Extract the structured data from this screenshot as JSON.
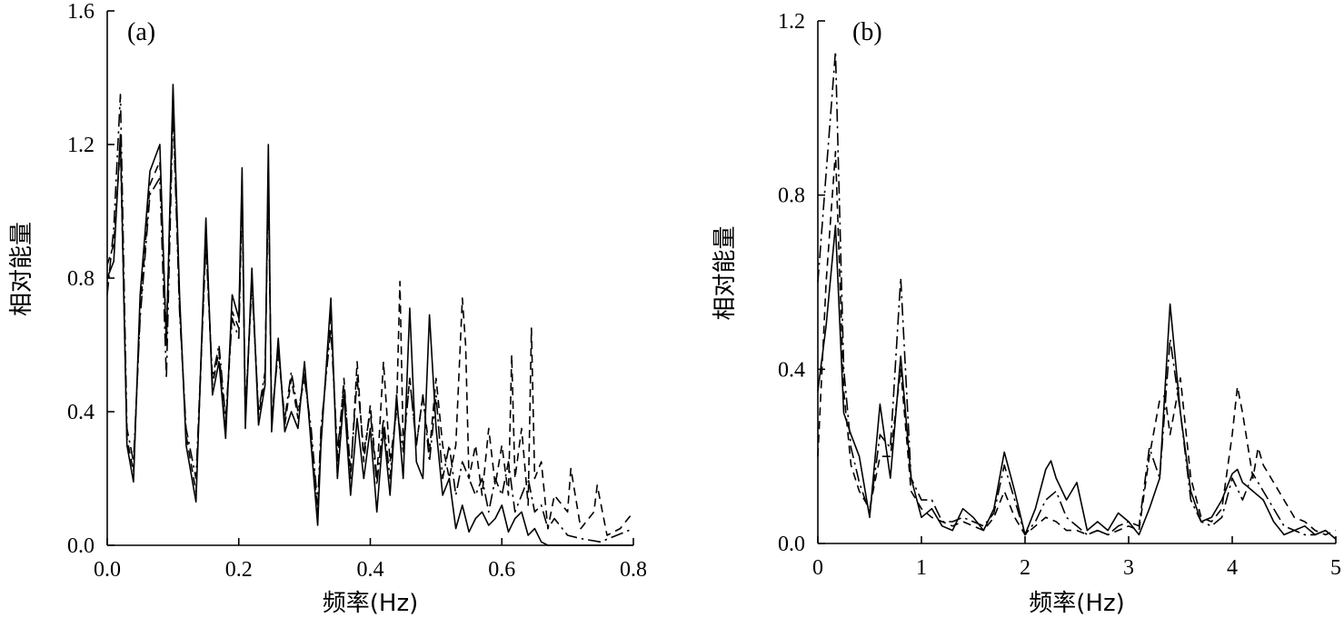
{
  "chart_data": [
    {
      "type": "line",
      "panel_label": "(a)",
      "xlabel": "频率(Hz)",
      "ylabel": "相对能量",
      "xlim": [
        0,
        0.8
      ],
      "ylim": [
        0,
        1.6
      ],
      "xticks": [
        "0.0",
        "0.2",
        "0.4",
        "0.6",
        "0.8"
      ],
      "yticks": [
        "0.0",
        "0.4",
        "0.8",
        "1.2",
        "1.6"
      ],
      "grid": false,
      "series": [
        {
          "style": "solid",
          "x": [
            0.0,
            0.01,
            0.02,
            0.03,
            0.04,
            0.05,
            0.065,
            0.08,
            0.09,
            0.1,
            0.11,
            0.12,
            0.135,
            0.15,
            0.16,
            0.17,
            0.18,
            0.19,
            0.2,
            0.205,
            0.21,
            0.22,
            0.23,
            0.24,
            0.245,
            0.25,
            0.26,
            0.27,
            0.28,
            0.29,
            0.3,
            0.31,
            0.32,
            0.325,
            0.34,
            0.35,
            0.36,
            0.37,
            0.38,
            0.39,
            0.4,
            0.41,
            0.42,
            0.43,
            0.44,
            0.45,
            0.46,
            0.47,
            0.48,
            0.49,
            0.5,
            0.51,
            0.52,
            0.53,
            0.54,
            0.55,
            0.56,
            0.57,
            0.58,
            0.59,
            0.6,
            0.61,
            0.62,
            0.63,
            0.64,
            0.65,
            0.66,
            0.67,
            0.68,
            0.7,
            0.72,
            0.75,
            0.8
          ],
          "y": [
            0.8,
            0.85,
            1.23,
            0.3,
            0.19,
            0.75,
            1.12,
            1.2,
            0.6,
            1.38,
            0.75,
            0.3,
            0.13,
            0.98,
            0.45,
            0.55,
            0.32,
            0.75,
            0.68,
            1.13,
            0.35,
            0.83,
            0.36,
            0.48,
            1.2,
            0.34,
            0.62,
            0.34,
            0.4,
            0.35,
            0.55,
            0.3,
            0.06,
            0.3,
            0.74,
            0.2,
            0.45,
            0.15,
            0.38,
            0.2,
            0.35,
            0.1,
            0.35,
            0.15,
            0.45,
            0.2,
            0.71,
            0.25,
            0.2,
            0.69,
            0.35,
            0.15,
            0.2,
            0.05,
            0.12,
            0.04,
            0.08,
            0.1,
            0.06,
            0.08,
            0.12,
            0.04,
            0.08,
            0.1,
            0.03,
            0.05,
            0.01,
            0.0,
            0.0,
            0.0,
            0.0,
            0.0,
            0.0
          ]
        },
        {
          "style": "dashed",
          "x": [
            0.0,
            0.01,
            0.02,
            0.03,
            0.04,
            0.05,
            0.065,
            0.08,
            0.09,
            0.1,
            0.11,
            0.12,
            0.135,
            0.15,
            0.16,
            0.17,
            0.18,
            0.19,
            0.2,
            0.205,
            0.21,
            0.22,
            0.23,
            0.24,
            0.245,
            0.25,
            0.26,
            0.27,
            0.28,
            0.29,
            0.3,
            0.31,
            0.32,
            0.325,
            0.34,
            0.35,
            0.36,
            0.37,
            0.38,
            0.39,
            0.4,
            0.41,
            0.42,
            0.43,
            0.44,
            0.445,
            0.45,
            0.46,
            0.47,
            0.48,
            0.49,
            0.5,
            0.51,
            0.52,
            0.53,
            0.54,
            0.545,
            0.55,
            0.56,
            0.57,
            0.58,
            0.59,
            0.6,
            0.61,
            0.615,
            0.62,
            0.63,
            0.64,
            0.645,
            0.65,
            0.66,
            0.67,
            0.68,
            0.7,
            0.705,
            0.72,
            0.74,
            0.745,
            0.76,
            0.78,
            0.8
          ],
          "y": [
            0.84,
            0.9,
            1.2,
            0.32,
            0.22,
            0.7,
            1.08,
            1.15,
            0.62,
            1.33,
            0.72,
            0.33,
            0.16,
            0.92,
            0.48,
            0.58,
            0.35,
            0.7,
            0.65,
            1.08,
            0.38,
            0.8,
            0.39,
            0.5,
            1.12,
            0.36,
            0.6,
            0.36,
            0.5,
            0.38,
            0.52,
            0.32,
            0.1,
            0.32,
            0.7,
            0.25,
            0.5,
            0.2,
            0.55,
            0.25,
            0.42,
            0.2,
            0.55,
            0.25,
            0.4,
            0.79,
            0.3,
            0.5,
            0.3,
            0.45,
            0.28,
            0.5,
            0.3,
            0.2,
            0.3,
            0.74,
            0.6,
            0.2,
            0.3,
            0.15,
            0.35,
            0.18,
            0.3,
            0.15,
            0.57,
            0.2,
            0.35,
            0.12,
            0.65,
            0.2,
            0.25,
            0.05,
            0.15,
            0.1,
            0.23,
            0.05,
            0.1,
            0.18,
            0.03,
            0.05,
            0.1
          ]
        },
        {
          "style": "dash-dot",
          "x": [
            0.0,
            0.01,
            0.02,
            0.03,
            0.04,
            0.05,
            0.065,
            0.08,
            0.09,
            0.1,
            0.11,
            0.12,
            0.135,
            0.15,
            0.16,
            0.17,
            0.18,
            0.19,
            0.2,
            0.205,
            0.21,
            0.22,
            0.23,
            0.24,
            0.245,
            0.25,
            0.26,
            0.27,
            0.28,
            0.29,
            0.3,
            0.31,
            0.32,
            0.325,
            0.34,
            0.35,
            0.36,
            0.37,
            0.38,
            0.39,
            0.4,
            0.41,
            0.42,
            0.43,
            0.44,
            0.45,
            0.46,
            0.47,
            0.48,
            0.49,
            0.5,
            0.51,
            0.52,
            0.53,
            0.54,
            0.55,
            0.56,
            0.57,
            0.58,
            0.59,
            0.6,
            0.61,
            0.62,
            0.63,
            0.64,
            0.65,
            0.66,
            0.67,
            0.68,
            0.7,
            0.72,
            0.75,
            0.8
          ],
          "y": [
            0.75,
            0.95,
            1.35,
            0.35,
            0.25,
            0.68,
            1.05,
            1.1,
            0.5,
            1.3,
            0.7,
            0.35,
            0.2,
            0.9,
            0.5,
            0.6,
            0.38,
            0.68,
            0.62,
            1.05,
            0.4,
            0.78,
            0.4,
            0.52,
            1.1,
            0.38,
            0.58,
            0.38,
            0.52,
            0.4,
            0.5,
            0.35,
            0.12,
            0.35,
            0.65,
            0.28,
            0.48,
            0.22,
            0.5,
            0.28,
            0.4,
            0.18,
            0.38,
            0.2,
            0.42,
            0.28,
            0.5,
            0.3,
            0.45,
            0.25,
            0.45,
            0.2,
            0.3,
            0.15,
            0.25,
            0.2,
            0.15,
            0.2,
            0.1,
            0.2,
            0.15,
            0.25,
            0.1,
            0.15,
            0.2,
            0.1,
            0.12,
            0.05,
            0.08,
            0.03,
            0.02,
            0.01,
            0.05
          ]
        }
      ]
    },
    {
      "type": "line",
      "panel_label": "(b)",
      "xlabel": "频率(Hz)",
      "ylabel": "相对能量",
      "xlim": [
        0,
        5
      ],
      "ylim": [
        0,
        1.2
      ],
      "xticks": [
        "0",
        "1",
        "2",
        "3",
        "4",
        "5"
      ],
      "yticks": [
        "0.0",
        "0.4",
        "0.8",
        "1.2"
      ],
      "grid": false,
      "series": [
        {
          "style": "solid",
          "x": [
            0.0,
            0.08,
            0.17,
            0.25,
            0.32,
            0.4,
            0.5,
            0.6,
            0.7,
            0.8,
            0.9,
            1.0,
            1.1,
            1.2,
            1.3,
            1.4,
            1.5,
            1.6,
            1.7,
            1.8,
            1.9,
            2.0,
            2.1,
            2.2,
            2.25,
            2.3,
            2.4,
            2.5,
            2.6,
            2.7,
            2.8,
            2.9,
            3.0,
            3.1,
            3.2,
            3.3,
            3.4,
            3.5,
            3.6,
            3.7,
            3.8,
            3.9,
            4.0,
            4.05,
            4.1,
            4.2,
            4.3,
            4.4,
            4.5,
            4.6,
            4.7,
            4.8,
            4.9,
            5.0
          ],
          "y": [
            0.35,
            0.5,
            0.73,
            0.3,
            0.25,
            0.2,
            0.06,
            0.32,
            0.15,
            0.43,
            0.15,
            0.06,
            0.08,
            0.04,
            0.03,
            0.08,
            0.06,
            0.03,
            0.08,
            0.21,
            0.12,
            0.02,
            0.08,
            0.17,
            0.19,
            0.15,
            0.1,
            0.14,
            0.03,
            0.05,
            0.03,
            0.07,
            0.05,
            0.02,
            0.08,
            0.15,
            0.55,
            0.3,
            0.12,
            0.05,
            0.06,
            0.1,
            0.16,
            0.17,
            0.14,
            0.12,
            0.1,
            0.05,
            0.02,
            0.03,
            0.04,
            0.02,
            0.03,
            0.01
          ]
        },
        {
          "style": "dashed",
          "x": [
            0.0,
            0.08,
            0.17,
            0.25,
            0.32,
            0.4,
            0.5,
            0.6,
            0.7,
            0.8,
            0.9,
            1.0,
            1.1,
            1.2,
            1.3,
            1.4,
            1.5,
            1.6,
            1.7,
            1.8,
            1.9,
            2.0,
            2.1,
            2.2,
            2.3,
            2.4,
            2.5,
            2.6,
            2.7,
            2.8,
            2.9,
            3.0,
            3.1,
            3.2,
            3.3,
            3.35,
            3.4,
            3.5,
            3.6,
            3.7,
            3.8,
            3.9,
            4.0,
            4.05,
            4.1,
            4.2,
            4.25,
            4.3,
            4.4,
            4.5,
            4.6,
            4.7,
            4.8,
            4.9,
            5.0
          ],
          "y": [
            0.2,
            0.6,
            0.9,
            0.35,
            0.18,
            0.12,
            0.08,
            0.2,
            0.2,
            0.4,
            0.12,
            0.08,
            0.06,
            0.05,
            0.04,
            0.05,
            0.04,
            0.03,
            0.06,
            0.12,
            0.06,
            0.02,
            0.04,
            0.06,
            0.05,
            0.03,
            0.03,
            0.02,
            0.03,
            0.02,
            0.03,
            0.04,
            0.03,
            0.2,
            0.33,
            0.34,
            0.25,
            0.38,
            0.15,
            0.06,
            0.05,
            0.08,
            0.25,
            0.36,
            0.3,
            0.15,
            0.22,
            0.18,
            0.14,
            0.1,
            0.06,
            0.05,
            0.03,
            0.02,
            0.03
          ]
        },
        {
          "style": "dash-dot",
          "x": [
            0.0,
            0.08,
            0.17,
            0.25,
            0.32,
            0.4,
            0.5,
            0.6,
            0.7,
            0.8,
            0.9,
            1.0,
            1.1,
            1.2,
            1.3,
            1.4,
            1.5,
            1.6,
            1.7,
            1.8,
            1.9,
            2.0,
            2.1,
            2.2,
            2.3,
            2.4,
            2.5,
            2.6,
            2.7,
            2.8,
            2.9,
            3.0,
            3.1,
            3.2,
            3.3,
            3.4,
            3.5,
            3.6,
            3.7,
            3.8,
            3.9,
            4.0,
            4.1,
            4.2,
            4.3,
            4.4,
            4.5,
            4.6,
            4.7,
            4.8,
            4.9,
            5.0
          ],
          "y": [
            0.6,
            0.85,
            1.13,
            0.4,
            0.22,
            0.14,
            0.07,
            0.25,
            0.22,
            0.61,
            0.15,
            0.1,
            0.1,
            0.05,
            0.05,
            0.06,
            0.05,
            0.04,
            0.07,
            0.18,
            0.1,
            0.02,
            0.05,
            0.1,
            0.12,
            0.06,
            0.04,
            0.02,
            0.03,
            0.02,
            0.04,
            0.05,
            0.04,
            0.22,
            0.15,
            0.47,
            0.3,
            0.1,
            0.05,
            0.04,
            0.06,
            0.15,
            0.1,
            0.16,
            0.12,
            0.08,
            0.04,
            0.03,
            0.02,
            0.02,
            0.03,
            0.01
          ]
        }
      ]
    }
  ]
}
